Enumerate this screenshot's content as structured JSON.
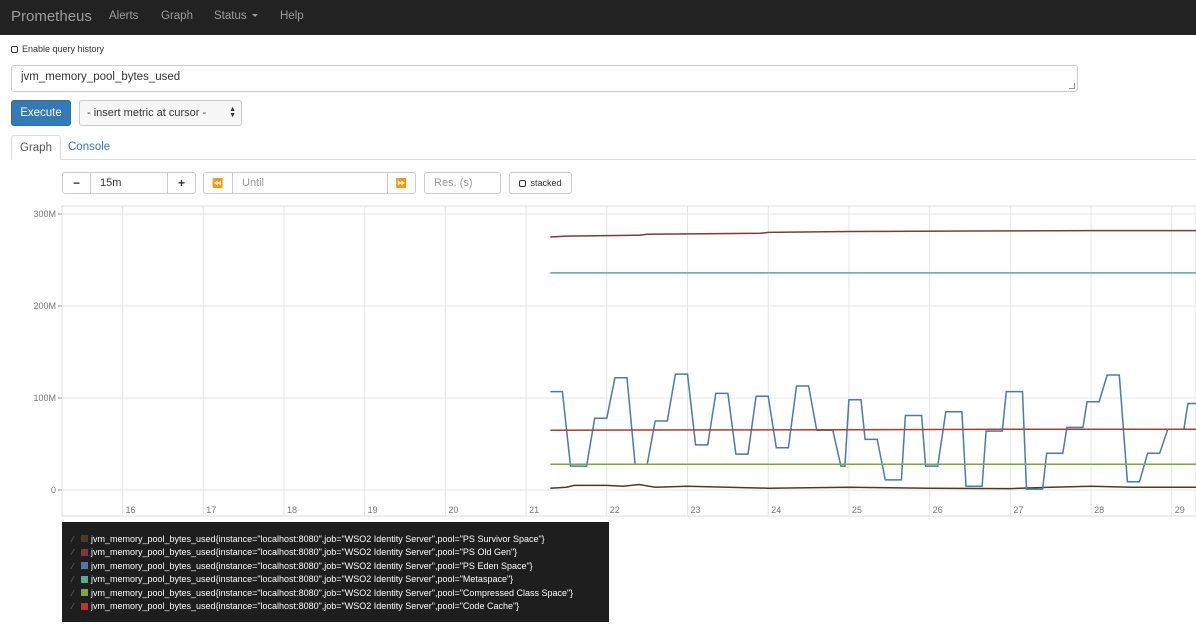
{
  "navbar": {
    "brand": "Prometheus",
    "items": [
      {
        "label": "Alerts"
      },
      {
        "label": "Graph"
      },
      {
        "label": "Status"
      },
      {
        "label": "Help"
      }
    ]
  },
  "query_history": {
    "label": "Enable query history",
    "checked": false
  },
  "expression": {
    "value": "jvm_memory_pool_bytes_used"
  },
  "execute_label": "Execute",
  "metric_select": {
    "selected": "- insert metric at cursor -"
  },
  "tabs": [
    {
      "label": "Graph",
      "active": true
    },
    {
      "label": "Console",
      "active": false
    }
  ],
  "controls": {
    "minus": "−",
    "range": "15m",
    "plus": "+",
    "back": "⏪",
    "until_placeholder": "Until",
    "forward": "⏩",
    "res_placeholder": "Res. (s)",
    "stacked_label": "stacked"
  },
  "chart_data": {
    "type": "line",
    "ylim": [
      0,
      310000000
    ],
    "yticks": [
      {
        "value": 0,
        "label": "0"
      },
      {
        "value": 100000000,
        "label": "100M"
      },
      {
        "value": 200000000,
        "label": "200M"
      },
      {
        "value": 300000000,
        "label": "300M"
      }
    ],
    "xlim": [
      15.25,
      29.3
    ],
    "xticks": [
      {
        "value": 16,
        "label": "16"
      },
      {
        "value": 17,
        "label": "17"
      },
      {
        "value": 18,
        "label": "18"
      },
      {
        "value": 19,
        "label": "19"
      },
      {
        "value": 20,
        "label": "20"
      },
      {
        "value": 21,
        "label": "21"
      },
      {
        "value": 22,
        "label": "22"
      },
      {
        "value": 23,
        "label": "23"
      },
      {
        "value": 24,
        "label": "24"
      },
      {
        "value": 25,
        "label": "25"
      },
      {
        "value": 26,
        "label": "26"
      },
      {
        "value": 27,
        "label": "27"
      },
      {
        "value": 28,
        "label": "28"
      },
      {
        "value": 29,
        "label": "29"
      }
    ],
    "grid": true,
    "series": [
      {
        "name": "jvm_memory_pool_bytes_used{instance=\"localhost:8080\",job=\"WSO2 Identity Server\",pool=\"PS Survivor Space\"}",
        "color": "#4d3b29",
        "points": [
          [
            21.3,
            2000000
          ],
          [
            21.5,
            3000000
          ],
          [
            21.6,
            5000000
          ],
          [
            22.0,
            5000000
          ],
          [
            22.2,
            4000000
          ],
          [
            22.4,
            6000000
          ],
          [
            22.6,
            3000000
          ],
          [
            23.0,
            4000000
          ],
          [
            23.5,
            3000000
          ],
          [
            24.0,
            2000000
          ],
          [
            25.0,
            3000000
          ],
          [
            26.0,
            2000000
          ],
          [
            27.0,
            1500000
          ],
          [
            27.5,
            3000000
          ],
          [
            28.0,
            4000000
          ],
          [
            28.5,
            3000000
          ],
          [
            29.3,
            3000000
          ]
        ]
      },
      {
        "name": "jvm_memory_pool_bytes_used{instance=\"localhost:8080\",job=\"WSO2 Identity Server\",pool=\"PS Old Gen\"}",
        "color": "#7d3a3a",
        "points": [
          [
            21.3,
            275000000
          ],
          [
            21.5,
            276000000
          ],
          [
            22.4,
            277000000
          ],
          [
            22.5,
            278000000
          ],
          [
            23.9,
            279000000
          ],
          [
            24.0,
            280000000
          ],
          [
            25.0,
            281000000
          ],
          [
            26.5,
            281500000
          ],
          [
            28.0,
            282000000
          ],
          [
            29.3,
            282000000
          ]
        ]
      },
      {
        "name": "jvm_memory_pool_bytes_used{instance=\"localhost:8080\",job=\"WSO2 Identity Server\",pool=\"PS Eden Space\"}",
        "color": "#4a7bab",
        "points": [
          [
            21.3,
            107000000
          ],
          [
            21.45,
            107000000
          ],
          [
            21.55,
            26000000
          ],
          [
            21.75,
            26000000
          ],
          [
            21.85,
            78000000
          ],
          [
            22.0,
            78000000
          ],
          [
            22.1,
            122000000
          ],
          [
            22.25,
            122000000
          ],
          [
            22.35,
            28000000
          ],
          [
            22.5,
            28000000
          ],
          [
            22.6,
            75000000
          ],
          [
            22.75,
            75000000
          ],
          [
            22.85,
            126000000
          ],
          [
            23.0,
            126000000
          ],
          [
            23.1,
            49000000
          ],
          [
            23.25,
            49000000
          ],
          [
            23.35,
            105000000
          ],
          [
            23.5,
            105000000
          ],
          [
            23.6,
            39000000
          ],
          [
            23.75,
            39000000
          ],
          [
            23.85,
            102000000
          ],
          [
            24.0,
            102000000
          ],
          [
            24.1,
            46000000
          ],
          [
            24.25,
            46000000
          ],
          [
            24.35,
            113000000
          ],
          [
            24.5,
            113000000
          ],
          [
            24.6,
            65000000
          ],
          [
            24.8,
            65000000
          ],
          [
            24.9,
            26000000
          ],
          [
            24.95,
            26000000
          ],
          [
            25.0,
            98000000
          ],
          [
            25.15,
            98000000
          ],
          [
            25.2,
            55000000
          ],
          [
            25.35,
            55000000
          ],
          [
            25.45,
            11000000
          ],
          [
            25.65,
            11000000
          ],
          [
            25.7,
            81000000
          ],
          [
            25.9,
            81000000
          ],
          [
            25.95,
            26000000
          ],
          [
            26.1,
            26000000
          ],
          [
            26.2,
            85000000
          ],
          [
            26.4,
            85000000
          ],
          [
            26.45,
            4000000
          ],
          [
            26.65,
            4000000
          ],
          [
            26.7,
            64000000
          ],
          [
            26.9,
            64000000
          ],
          [
            26.95,
            107000000
          ],
          [
            27.15,
            107000000
          ],
          [
            27.2,
            1000000
          ],
          [
            27.4,
            1000000
          ],
          [
            27.45,
            40000000
          ],
          [
            27.65,
            40000000
          ],
          [
            27.7,
            68000000
          ],
          [
            27.9,
            68000000
          ],
          [
            27.95,
            96000000
          ],
          [
            28.1,
            96000000
          ],
          [
            28.2,
            125000000
          ],
          [
            28.35,
            125000000
          ],
          [
            28.45,
            9000000
          ],
          [
            28.6,
            9000000
          ],
          [
            28.7,
            40000000
          ],
          [
            28.85,
            40000000
          ],
          [
            28.95,
            66000000
          ],
          [
            29.15,
            66000000
          ],
          [
            29.2,
            94000000
          ],
          [
            29.3,
            94000000
          ]
        ]
      },
      {
        "name": "jvm_memory_pool_bytes_used{instance=\"localhost:8080\",job=\"WSO2 Identity Server\",pool=\"Metaspace\"}",
        "color": "#5aa89a",
        "points": [
          [
            21.3,
            236000000
          ],
          [
            29.3,
            236000000
          ]
        ]
      },
      {
        "name": "jvm_memory_pool_bytes_used{instance=\"localhost:8080\",job=\"WSO2 Identity Server\",pool=\"Compressed Class Space\"}",
        "color": "#7aaa3a",
        "points": [
          [
            21.3,
            28000000
          ],
          [
            29.3,
            28000000
          ]
        ]
      },
      {
        "name": "jvm_memory_pool_bytes_used{instance=\"localhost:8080\",job=\"WSO2 Identity Server\",pool=\"Code Cache\"}",
        "color": "#b43a2e",
        "points": [
          [
            21.3,
            65000000
          ],
          [
            25.0,
            65500000
          ],
          [
            27.0,
            66000000
          ],
          [
            29.3,
            66000000
          ]
        ]
      }
    ]
  }
}
